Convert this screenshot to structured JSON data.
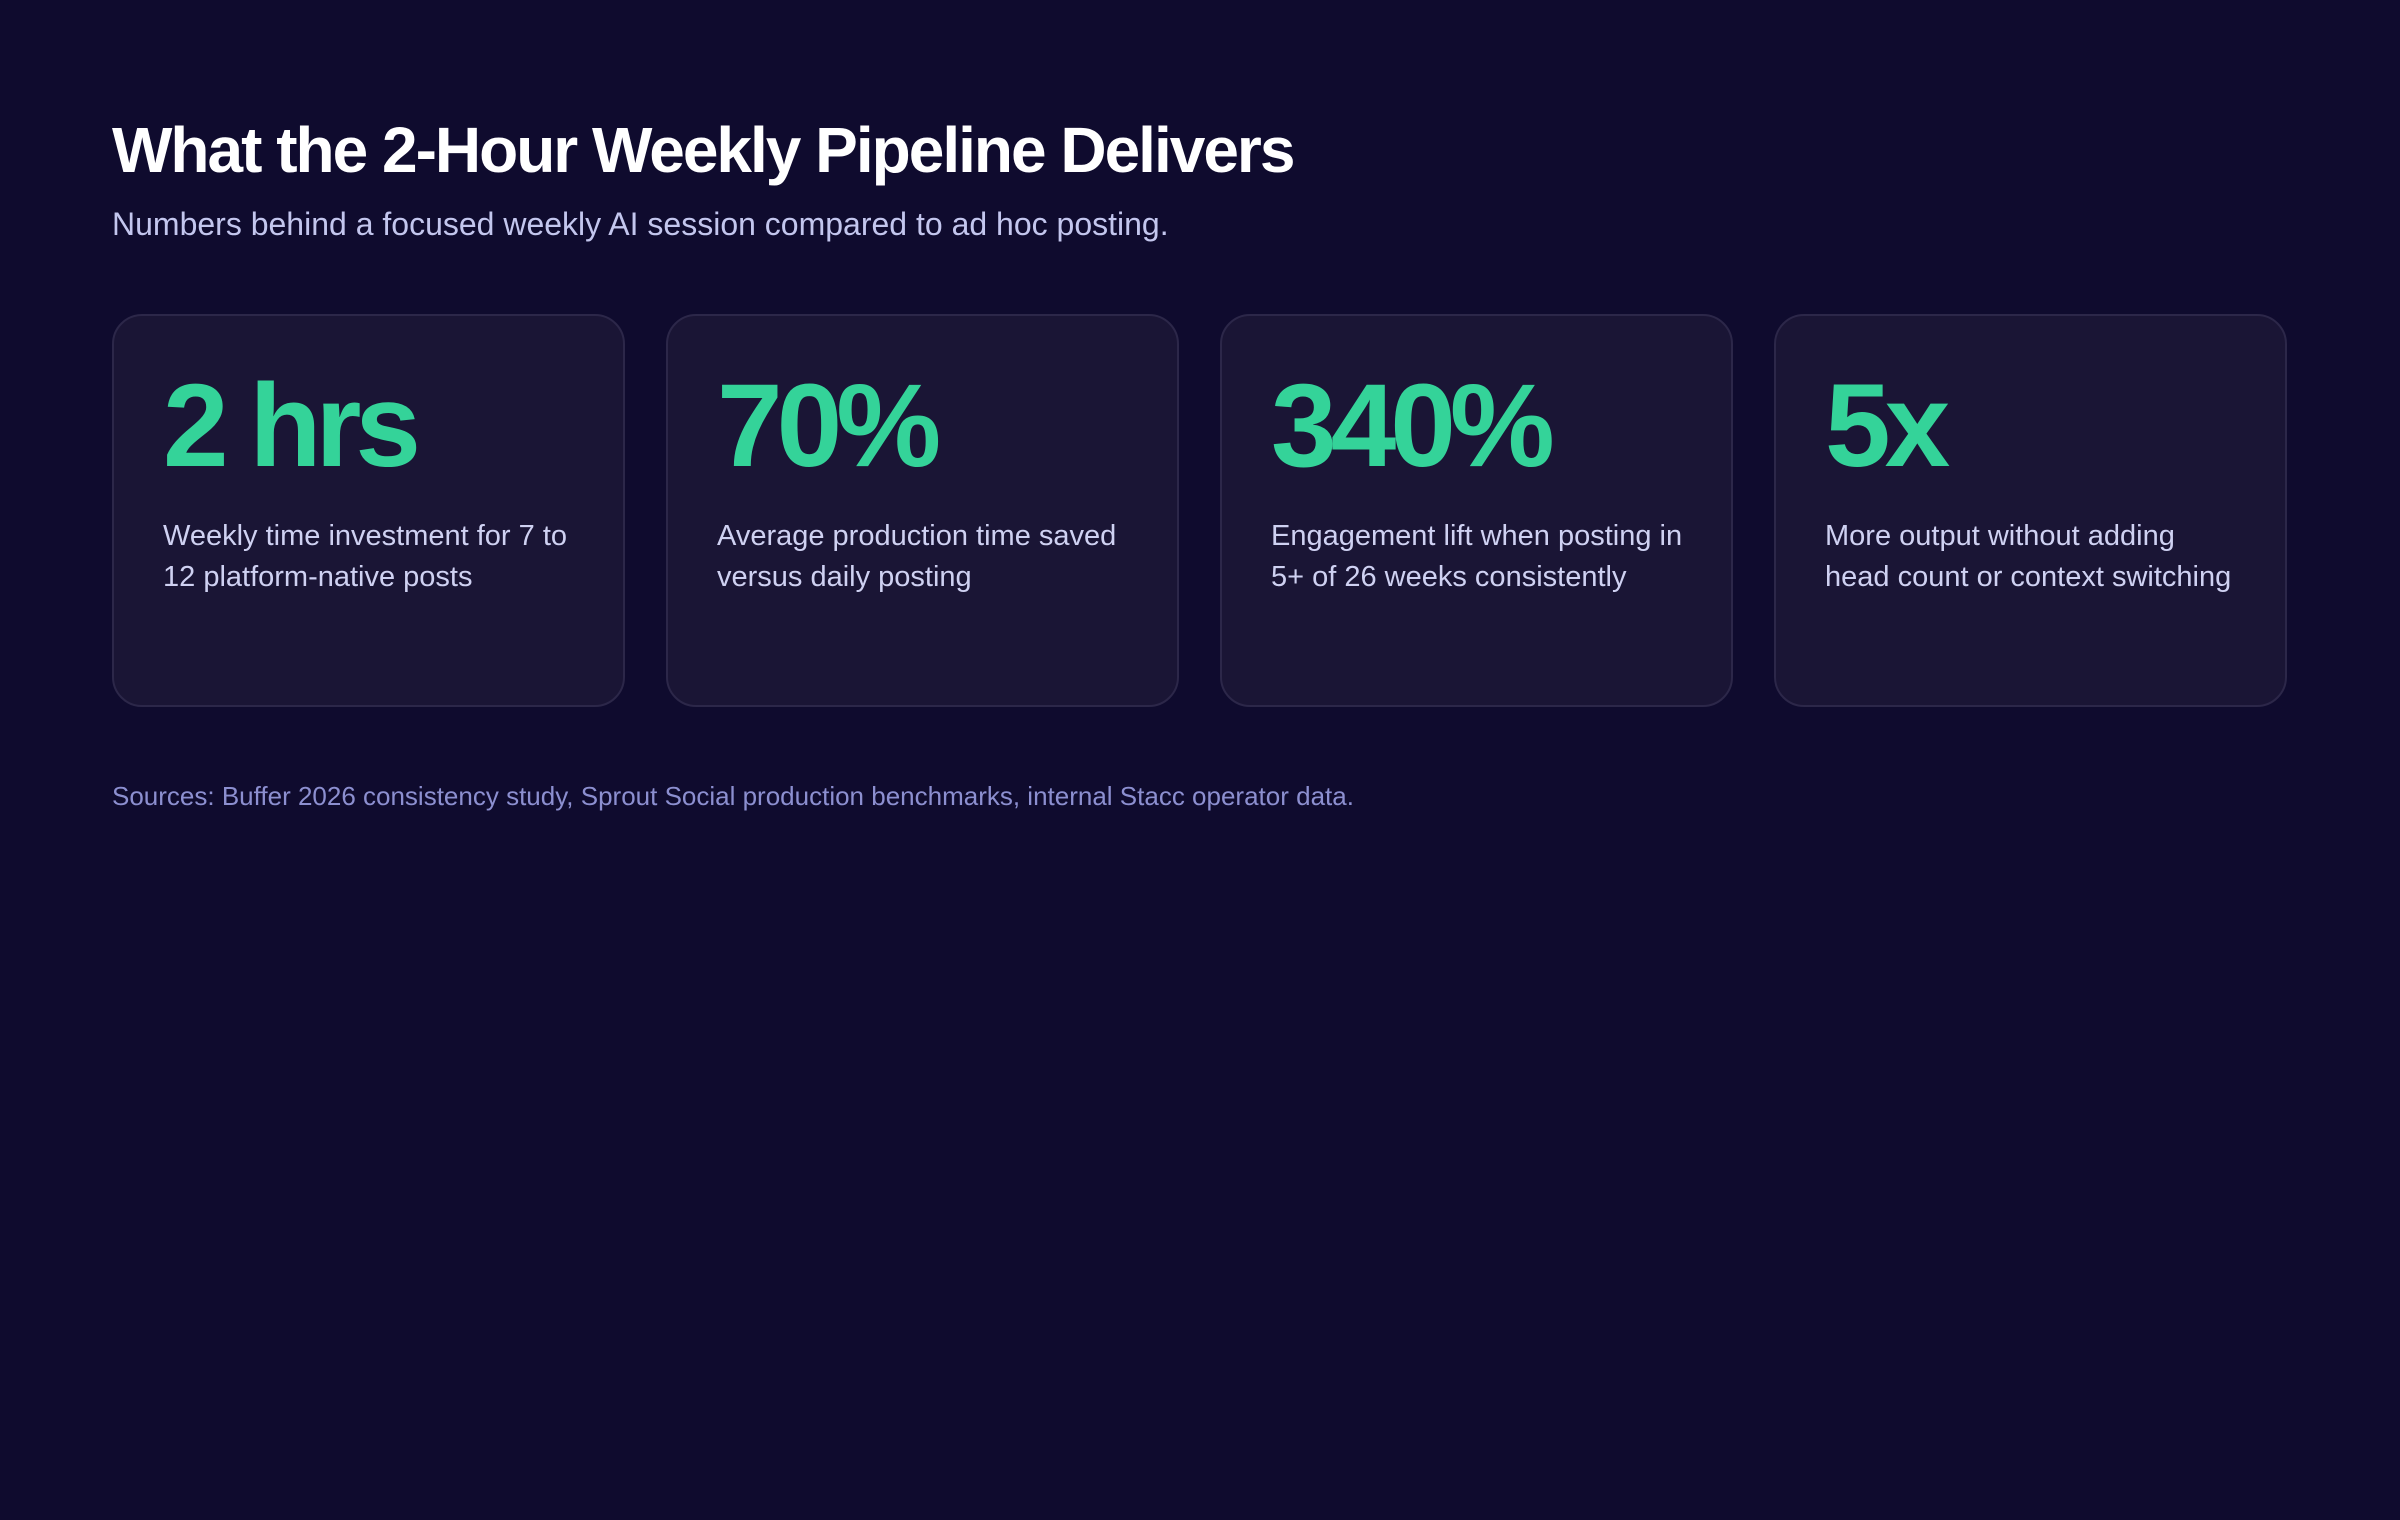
{
  "header": {
    "title": "What the 2-Hour Weekly Pipeline Delivers",
    "subtitle": "Numbers behind a focused weekly AI session compared to ad hoc posting."
  },
  "stats": [
    {
      "value": "2 hrs",
      "description": "Weekly time investment for 7 to 12 platform-native posts"
    },
    {
      "value": "70%",
      "description": "Average production time saved versus daily posting"
    },
    {
      "value": "340%",
      "description": "Engagement lift when posting in 5+ of 26 weeks consistently"
    },
    {
      "value": "5x",
      "description": "More output without adding head count or context switching"
    }
  ],
  "footer": {
    "sources": "Sources: Buffer 2026 consistency study, Sprout Social production benchmarks, internal Stacc operator data."
  },
  "colors": {
    "background": "#0f0b2e",
    "card": "#1a1535",
    "accent": "#34d399"
  }
}
